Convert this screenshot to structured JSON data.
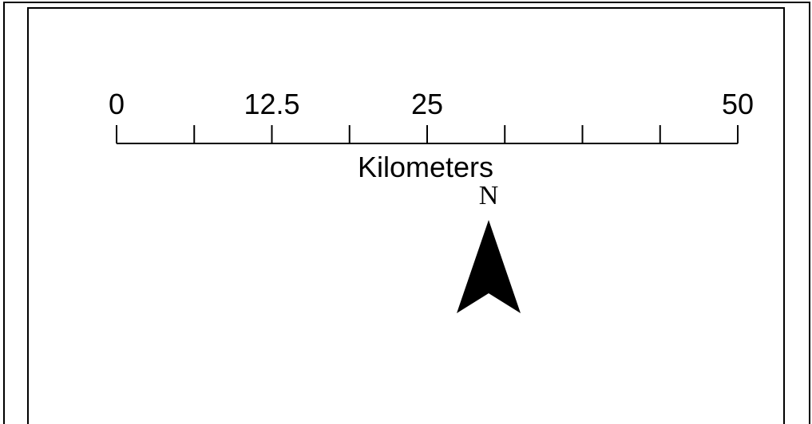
{
  "scale_bar": {
    "unit_label": "Kilometers",
    "max_value": 50,
    "minor_divisions": 8,
    "labels": [
      {
        "text": "0",
        "value": 0
      },
      {
        "text": "12.5",
        "value": 12.5
      },
      {
        "text": "25",
        "value": 25
      },
      {
        "text": "50",
        "value": 50
      }
    ]
  },
  "north_arrow": {
    "label": "N"
  },
  "colors": {
    "ink": "#000000",
    "paper": "#ffffff"
  }
}
